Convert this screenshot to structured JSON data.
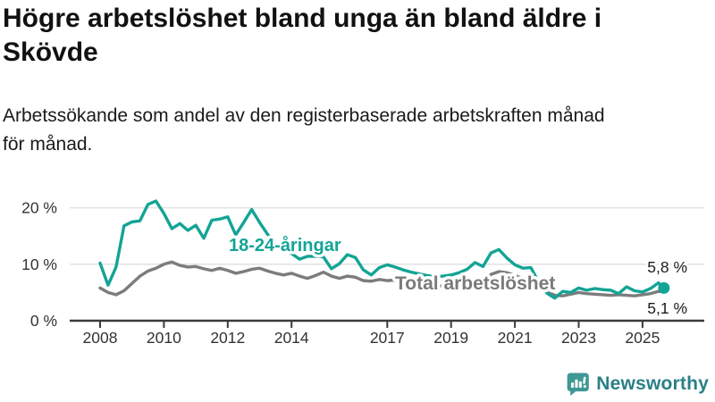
{
  "header": {
    "title": "Högre arbetslöshet bland unga än bland äldre i Skövde",
    "title_lines": [
      "Högre arbetslöshet bland unga än bland äldre i",
      "Skövde"
    ],
    "subtitle": "Arbetssökande som andel av den registerbaserade arbetskraften månad för månad.",
    "subtitle_lines": [
      "Arbetssökande som andel av den registerbaserade arbetskraften månad",
      "för månad."
    ]
  },
  "annotations": {
    "series1_label": "18-24-åringar",
    "series2_label": "Total arbetslöshet",
    "end_value_top": "5,8 %",
    "end_value_bottom": "5,1 %"
  },
  "branding": {
    "logo_text": "Newsworthy",
    "logo_icon": "bar-chart-speech-bubble-icon",
    "logo_icon_color": "#3f9894",
    "logo_text_color": "#2b7f86"
  },
  "colors": {
    "youth_line": "#13a495",
    "total_line": "#7c7c7c",
    "grid": "#e2e2e2",
    "axis": "#3b3b3b"
  },
  "chart_data": {
    "type": "line",
    "title": "Högre arbetslöshet bland unga än bland äldre i Skövde",
    "subtitle": "Arbetssökande som andel av den registerbaserade arbetskraften månad för månad.",
    "xlabel": "",
    "ylabel": "",
    "unit": "%",
    "grid": "horizontal",
    "legend_position": "inline-labels",
    "xlim": [
      2008,
      2025.9
    ],
    "ylim": [
      0,
      22.5
    ],
    "xticks": [
      "2008",
      "2010",
      "2012",
      "2014",
      "2017",
      "2019",
      "2021",
      "2023",
      "2025"
    ],
    "xtick_years": [
      2008,
      2010,
      2012,
      2014,
      2017,
      2019,
      2021,
      2023,
      2025
    ],
    "yticks": [
      {
        "value": 0,
        "label": "0 %"
      },
      {
        "value": 10,
        "label": "10 %"
      },
      {
        "value": 20,
        "label": "20 %"
      }
    ],
    "x": [
      2008.0,
      2008.25,
      2008.5,
      2008.75,
      2009.0,
      2009.25,
      2009.5,
      2009.75,
      2010.0,
      2010.25,
      2010.5,
      2010.75,
      2011.0,
      2011.25,
      2011.5,
      2011.75,
      2012.0,
      2012.25,
      2012.5,
      2012.75,
      2013.0,
      2013.25,
      2013.5,
      2013.75,
      2014.0,
      2014.25,
      2014.5,
      2014.75,
      2015.0,
      2015.25,
      2015.5,
      2015.75,
      2016.0,
      2016.25,
      2016.5,
      2016.75,
      2017.0,
      2017.25,
      2017.5,
      2017.75,
      2018.0,
      2018.25,
      2018.5,
      2018.75,
      2019.0,
      2019.25,
      2019.5,
      2019.75,
      2020.0,
      2020.25,
      2020.5,
      2020.75,
      2021.0,
      2021.25,
      2021.5,
      2021.75,
      2022.0,
      2022.25,
      2022.5,
      2022.75,
      2023.0,
      2023.25,
      2023.5,
      2023.75,
      2024.0,
      2024.25,
      2024.5,
      2024.75,
      2025.0,
      2025.25,
      2025.5,
      2025.67
    ],
    "series": [
      {
        "name": "18-24-åringar",
        "color": "#13a495",
        "end_label": "5,8 %",
        "end_value": 5.8,
        "end_dot": true,
        "values": [
          10.2,
          6.3,
          9.5,
          16.8,
          17.5,
          17.7,
          20.6,
          21.2,
          19.0,
          16.3,
          17.2,
          16.0,
          16.9,
          14.6,
          17.8,
          18.0,
          18.4,
          15.2,
          17.4,
          19.7,
          17.4,
          15.3,
          13.6,
          12.6,
          11.9,
          10.9,
          11.4,
          11.4,
          11.3,
          9.2,
          10.1,
          11.7,
          11.2,
          9.0,
          8.1,
          9.4,
          9.9,
          9.5,
          9.0,
          8.6,
          8.3,
          8.0,
          7.8,
          7.9,
          8.1,
          8.5,
          9.1,
          10.3,
          9.6,
          12.0,
          12.6,
          11.1,
          9.9,
          9.3,
          9.4,
          6.8,
          4.9,
          4.0,
          5.2,
          5.0,
          5.8,
          5.4,
          5.7,
          5.5,
          5.4,
          4.8,
          6.0,
          5.3,
          5.1,
          5.7,
          6.7,
          5.8
        ]
      },
      {
        "name": "Total arbetslöshet",
        "color": "#7c7c7c",
        "end_label": "5,1 %",
        "end_value": 5.1,
        "end_dot": false,
        "values": [
          5.8,
          5.0,
          4.6,
          5.3,
          6.6,
          7.9,
          8.8,
          9.3,
          10.0,
          10.4,
          9.8,
          9.5,
          9.6,
          9.2,
          8.9,
          9.3,
          8.9,
          8.4,
          8.7,
          9.1,
          9.3,
          8.8,
          8.4,
          8.1,
          8.4,
          7.9,
          7.5,
          8.0,
          8.6,
          7.9,
          7.5,
          7.9,
          7.7,
          7.1,
          7.0,
          7.3,
          7.1,
          7.2,
          6.9,
          6.6,
          6.4,
          6.2,
          6.1,
          6.2,
          6.3,
          6.4,
          6.5,
          6.8,
          7.0,
          8.2,
          8.7,
          8.5,
          8.0,
          7.5,
          7.0,
          6.0,
          5.2,
          4.5,
          4.4,
          4.7,
          5.0,
          4.8,
          4.7,
          4.6,
          4.5,
          4.6,
          4.5,
          4.4,
          4.6,
          4.8,
          5.2,
          5.1
        ]
      }
    ]
  }
}
